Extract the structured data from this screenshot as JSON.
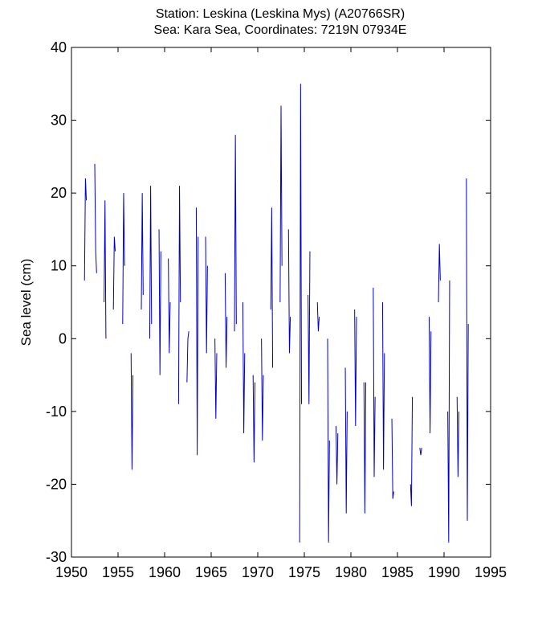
{
  "chart_data": {
    "type": "line",
    "title": [
      "Station: Leskina (Leskina Mys)  (A20766SR)",
      "Sea: Kara Sea, Coordinates: 7219N 07934E"
    ],
    "xlabel": "",
    "ylabel": "Sea level (cm)",
    "xlim": [
      1950,
      1995
    ],
    "ylim": [
      -30,
      40
    ],
    "xticks": [
      1950,
      1955,
      1960,
      1965,
      1970,
      1975,
      1980,
      1985,
      1990,
      1995
    ],
    "yticks": [
      -30,
      -20,
      -10,
      0,
      10,
      20,
      30,
      40
    ],
    "grid": false,
    "line_color": "#0000cc",
    "series": [
      {
        "segments": [
          [
            [
              1951.4,
              8
            ],
            [
              1951.5,
              22
            ],
            [
              1951.6,
              19
            ]
          ],
          [
            [
              1952.5,
              24
            ],
            [
              1952.6,
              12
            ],
            [
              1952.7,
              9
            ]
          ],
          [
            [
              1953.5,
              5
            ],
            [
              1953.6,
              19
            ],
            [
              1953.7,
              0
            ]
          ],
          [
            [
              1954.5,
              4
            ],
            [
              1954.6,
              14
            ],
            [
              1954.7,
              12
            ]
          ],
          [
            [
              1955.5,
              2
            ],
            [
              1955.6,
              20
            ],
            [
              1955.7,
              10
            ]
          ],
          [
            [
              1956.4,
              -2
            ],
            [
              1956.5,
              -18
            ],
            [
              1956.6,
              -5
            ]
          ],
          [
            [
              1957.5,
              4
            ],
            [
              1957.6,
              20
            ],
            [
              1957.7,
              6
            ]
          ],
          [
            [
              1958.4,
              0
            ],
            [
              1958.5,
              21
            ],
            [
              1958.6,
              2
            ]
          ],
          [
            [
              1959.4,
              15
            ],
            [
              1959.5,
              -5
            ],
            [
              1959.6,
              12
            ]
          ],
          [
            [
              1960.4,
              11
            ],
            [
              1960.5,
              -2
            ],
            [
              1960.6,
              5
            ]
          ],
          [
            [
              1961.5,
              -9
            ],
            [
              1961.6,
              21
            ],
            [
              1961.7,
              5
            ]
          ],
          [
            [
              1962.4,
              -6
            ],
            [
              1962.5,
              0
            ],
            [
              1962.6,
              1
            ]
          ],
          [
            [
              1963.4,
              18
            ],
            [
              1963.5,
              -16
            ],
            [
              1963.6,
              14
            ]
          ],
          [
            [
              1964.4,
              14
            ],
            [
              1964.5,
              -2
            ],
            [
              1964.6,
              10
            ]
          ],
          [
            [
              1965.4,
              0
            ],
            [
              1965.5,
              -11
            ],
            [
              1965.6,
              -2
            ]
          ],
          [
            [
              1966.5,
              9
            ],
            [
              1966.6,
              -4
            ],
            [
              1966.7,
              3
            ]
          ],
          [
            [
              1967.5,
              1
            ],
            [
              1967.6,
              28
            ],
            [
              1967.7,
              2
            ]
          ],
          [
            [
              1968.4,
              5
            ],
            [
              1968.5,
              -13
            ],
            [
              1968.6,
              -2
            ]
          ],
          [
            [
              1969.5,
              -5
            ],
            [
              1969.6,
              -17
            ],
            [
              1969.7,
              -6
            ]
          ],
          [
            [
              1970.4,
              0
            ],
            [
              1970.5,
              -14
            ],
            [
              1970.6,
              -5
            ]
          ],
          [
            [
              1971.4,
              4
            ],
            [
              1971.5,
              18
            ],
            [
              1971.6,
              -4
            ]
          ],
          [
            [
              1972.4,
              5
            ],
            [
              1972.5,
              32
            ],
            [
              1972.6,
              10
            ]
          ],
          [
            [
              1973.3,
              15
            ],
            [
              1973.4,
              -2
            ],
            [
              1973.5,
              3
            ]
          ],
          [
            [
              1974.5,
              -28
            ],
            [
              1974.6,
              35
            ],
            [
              1974.7,
              -9
            ]
          ],
          [
            [
              1975.4,
              6
            ],
            [
              1975.5,
              -9
            ],
            [
              1975.6,
              12
            ]
          ],
          [
            [
              1976.4,
              5
            ],
            [
              1976.5,
              1
            ],
            [
              1976.6,
              3
            ]
          ],
          [
            [
              1977.5,
              0
            ],
            [
              1977.6,
              -28
            ],
            [
              1977.7,
              -14
            ]
          ],
          [
            [
              1978.4,
              -12
            ],
            [
              1978.5,
              -20
            ],
            [
              1978.6,
              -13
            ]
          ],
          [
            [
              1979.4,
              -4
            ],
            [
              1979.5,
              -24
            ],
            [
              1979.6,
              -10
            ]
          ],
          [
            [
              1980.4,
              4
            ],
            [
              1980.5,
              -12
            ],
            [
              1980.6,
              3
            ]
          ],
          [
            [
              1981.4,
              -6
            ],
            [
              1981.5,
              -24
            ],
            [
              1981.6,
              -6
            ]
          ],
          [
            [
              1982.4,
              7
            ],
            [
              1982.5,
              -19
            ],
            [
              1982.6,
              -8
            ]
          ],
          [
            [
              1983.4,
              5
            ],
            [
              1983.5,
              -18
            ],
            [
              1983.6,
              -2
            ]
          ],
          [
            [
              1984.4,
              -11
            ],
            [
              1984.5,
              -22
            ],
            [
              1984.6,
              -21
            ]
          ],
          [
            [
              1986.4,
              -20
            ],
            [
              1986.5,
              -23
            ],
            [
              1986.6,
              -8
            ]
          ],
          [
            [
              1987.4,
              -15
            ],
            [
              1987.5,
              -16
            ],
            [
              1987.6,
              -15
            ]
          ],
          [
            [
              1988.4,
              3
            ],
            [
              1988.5,
              -13
            ],
            [
              1988.6,
              1
            ]
          ],
          [
            [
              1989.4,
              5
            ],
            [
              1989.5,
              13
            ],
            [
              1989.6,
              8
            ]
          ],
          [
            [
              1990.4,
              -10
            ],
            [
              1990.5,
              -28
            ],
            [
              1990.6,
              8
            ]
          ],
          [
            [
              1991.4,
              -8
            ],
            [
              1991.5,
              -19
            ],
            [
              1991.6,
              -10
            ]
          ],
          [
            [
              1992.4,
              22
            ],
            [
              1992.5,
              -25
            ],
            [
              1992.6,
              2
            ]
          ]
        ]
      }
    ]
  }
}
